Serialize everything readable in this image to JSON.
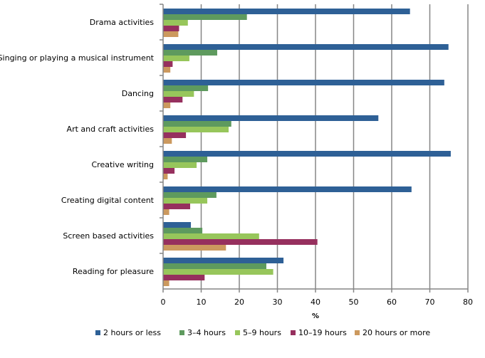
{
  "chart_data": {
    "type": "bar",
    "orientation": "horizontal",
    "title": "",
    "xlabel": "%",
    "ylabel": "",
    "xlim": [
      0,
      80
    ],
    "xticks": [
      0,
      10,
      20,
      30,
      40,
      50,
      60,
      70,
      80
    ],
    "grid": true,
    "legend_position": "bottom",
    "categories": [
      "Drama activities",
      "Singing or playing a musical instrument",
      "Dancing",
      "Art and craft activities",
      "Creative writing",
      "Creating digital content",
      "Screen based activities",
      "Reading for pleasure"
    ],
    "series": [
      {
        "name": "2 hours or less",
        "color": "#2E6096",
        "values": [
          64.8,
          74.9,
          73.8,
          56.5,
          75.5,
          65.2,
          7.3,
          31.6
        ]
      },
      {
        "name": "3–4 hours",
        "color": "#5E9A5E",
        "values": [
          22.0,
          14.2,
          11.8,
          17.9,
          11.6,
          14.0,
          10.3,
          27.1
        ]
      },
      {
        "name": "5–9 hours",
        "color": "#97C65B",
        "values": [
          6.5,
          6.9,
          8.1,
          17.2,
          8.8,
          11.6,
          25.2,
          28.9
        ]
      },
      {
        "name": "10–19 hours",
        "color": "#96305E",
        "values": [
          4.2,
          2.5,
          5.1,
          6.0,
          3.0,
          7.1,
          40.5,
          10.9
        ]
      },
      {
        "name": "20 hours or more",
        "color": "#CC995E",
        "values": [
          4.0,
          1.9,
          1.9,
          2.3,
          1.2,
          1.6,
          16.5,
          1.6
        ]
      }
    ]
  }
}
